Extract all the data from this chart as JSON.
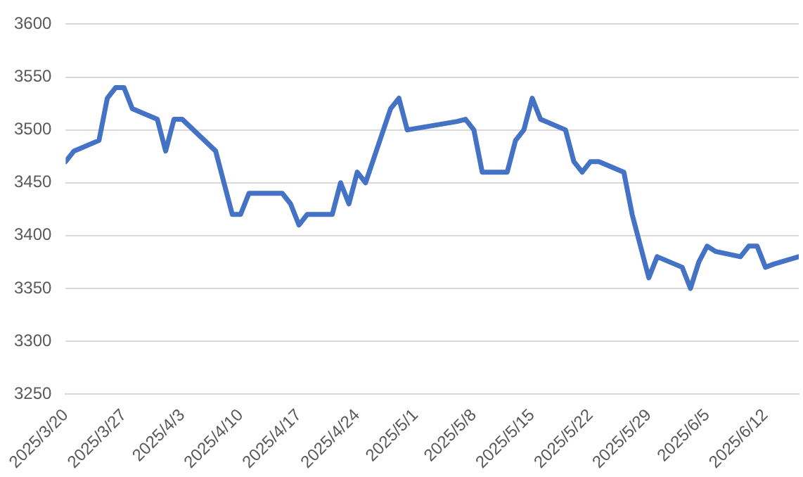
{
  "chart_data": {
    "type": "line",
    "x": [
      "2025-03-20",
      "2025-03-21",
      "2025-03-24",
      "2025-03-25",
      "2025-03-26",
      "2025-03-27",
      "2025-03-28",
      "2025-03-31",
      "2025-04-01",
      "2025-04-02",
      "2025-04-03",
      "2025-04-07",
      "2025-04-09",
      "2025-04-10",
      "2025-04-11",
      "2025-04-14",
      "2025-04-15",
      "2025-04-16",
      "2025-04-17",
      "2025-04-18",
      "2025-04-21",
      "2025-04-22",
      "2025-04-23",
      "2025-04-24",
      "2025-04-25",
      "2025-04-28",
      "2025-04-29",
      "2025-04-30",
      "2025-05-06",
      "2025-05-07",
      "2025-05-08",
      "2025-05-09",
      "2025-05-12",
      "2025-05-13",
      "2025-05-14",
      "2025-05-15",
      "2025-05-16",
      "2025-05-19",
      "2025-05-20",
      "2025-05-21",
      "2025-05-22",
      "2025-05-23",
      "2025-05-26",
      "2025-05-27",
      "2025-05-28",
      "2025-05-29",
      "2025-05-30",
      "2025-06-02",
      "2025-06-03",
      "2025-06-04",
      "2025-06-05",
      "2025-06-06",
      "2025-06-09",
      "2025-06-10",
      "2025-06-11",
      "2025-06-12",
      "2025-06-13",
      "2025-06-16"
    ],
    "series": [
      {
        "color": "#4472c4",
        "values": [
          3470,
          3480,
          3490,
          3530,
          3540,
          3540,
          3520,
          3510,
          3480,
          3510,
          3510,
          3480,
          3420,
          3420,
          3440,
          3440,
          3440,
          3430,
          3410,
          3420,
          3420,
          3450,
          3430,
          3460,
          3450,
          3520,
          3530,
          3500,
          3508,
          3510,
          3500,
          3460,
          3460,
          3490,
          3500,
          3530,
          3510,
          3500,
          3470,
          3460,
          3470,
          3470,
          3460,
          3420,
          3390,
          3360,
          3380,
          3370,
          3350,
          3375,
          3390,
          3385,
          3380,
          3390,
          3390,
          3370,
          3373,
          3380
        ]
      }
    ],
    "xlim": [
      "2025-03-20",
      "2025-06-16"
    ],
    "xticks": [
      {
        "value": "2025-03-20",
        "label": "2025/3/20"
      },
      {
        "value": "2025-03-27",
        "label": "2025/3/27"
      },
      {
        "value": "2025-04-03",
        "label": "2025/4/3"
      },
      {
        "value": "2025-04-10",
        "label": "2025/4/10"
      },
      {
        "value": "2025-04-17",
        "label": "2025/4/17"
      },
      {
        "value": "2025-04-24",
        "label": "2025/4/24"
      },
      {
        "value": "2025-05-01",
        "label": "2025/5/1"
      },
      {
        "value": "2025-05-08",
        "label": "2025/5/8"
      },
      {
        "value": "2025-05-15",
        "label": "2025/5/15"
      },
      {
        "value": "2025-05-22",
        "label": "2025/5/22"
      },
      {
        "value": "2025-05-29",
        "label": "2025/5/29"
      },
      {
        "value": "2025-06-05",
        "label": "2025/6/5"
      },
      {
        "value": "2025-06-12",
        "label": "2025/6/12"
      }
    ],
    "ylim": [
      3250,
      3600
    ],
    "yticks": [
      3250,
      3300,
      3350,
      3400,
      3450,
      3500,
      3550,
      3600
    ],
    "grid": "y",
    "legend": false,
    "marker": "none",
    "line_style": "solid"
  }
}
